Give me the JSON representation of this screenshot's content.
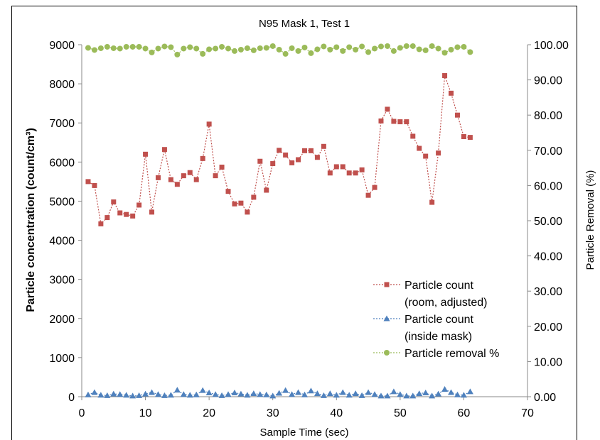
{
  "chart_data": {
    "type": "line",
    "title": "N95 Mask 1, Test 1",
    "xlabel": "Sample Time (sec)",
    "ylabel": "Particle concentration (count/cm³)",
    "ylabel_right": "Particle Removal (%)",
    "xlim": [
      0,
      70
    ],
    "ylim": [
      0,
      9000
    ],
    "ylim_right": [
      0,
      100
    ],
    "x_ticks": [
      "0",
      "10",
      "20",
      "30",
      "40",
      "50",
      "60",
      "70"
    ],
    "y_ticks": [
      "0",
      "1000",
      "2000",
      "3000",
      "4000",
      "5000",
      "6000",
      "7000",
      "8000",
      "9000"
    ],
    "y_ticks_right": [
      "0.00",
      "10.00",
      "20.00",
      "30.00",
      "40.00",
      "50.00",
      "60.00",
      "70.00",
      "80.00",
      "90.00",
      "100.00"
    ],
    "grid": false,
    "legend_position": "bottom-right",
    "series": [
      {
        "name": "Particle count (room, adjusted)",
        "legend_lines": [
          "Particle count",
          "(room, adjusted)"
        ],
        "axis": "left",
        "color": "#c0504d",
        "marker": "square",
        "x": [
          1,
          2,
          3,
          4,
          5,
          6,
          7,
          8,
          9,
          10,
          11,
          12,
          13,
          14,
          15,
          16,
          17,
          18,
          19,
          20,
          21,
          22,
          23,
          24,
          25,
          26,
          27,
          28,
          29,
          30,
          31,
          32,
          33,
          34,
          35,
          36,
          37,
          38,
          39,
          40,
          41,
          42,
          43,
          44,
          45,
          46,
          47,
          48,
          49,
          50,
          51,
          52,
          53,
          54,
          55,
          56,
          57,
          58,
          59,
          60,
          61
        ],
        "values": [
          5500,
          5400,
          4420,
          4580,
          4980,
          4700,
          4660,
          4620,
          4900,
          6200,
          4720,
          5600,
          6320,
          5550,
          5430,
          5650,
          5730,
          5550,
          6090,
          6970,
          5650,
          5870,
          5250,
          4930,
          4950,
          4720,
          5100,
          6020,
          5280,
          5960,
          6300,
          6180,
          5980,
          6060,
          6290,
          6290,
          6120,
          6400,
          5720,
          5880,
          5880,
          5720,
          5720,
          5800,
          5150,
          5350,
          7050,
          7350,
          7040,
          7030,
          7030,
          6660,
          6350,
          6150,
          4970,
          6230,
          8210,
          7760,
          7200,
          6650,
          6630
        ]
      },
      {
        "name": "Particle count (inside mask)",
        "legend_lines": [
          "Particle count",
          "(inside mask)"
        ],
        "axis": "left",
        "color": "#4f81bd",
        "marker": "triangle",
        "x": [
          1,
          2,
          3,
          4,
          5,
          6,
          7,
          8,
          9,
          10,
          11,
          12,
          13,
          14,
          15,
          16,
          17,
          18,
          19,
          20,
          21,
          22,
          23,
          24,
          25,
          26,
          27,
          28,
          29,
          30,
          31,
          32,
          33,
          34,
          35,
          36,
          37,
          38,
          39,
          40,
          41,
          42,
          43,
          44,
          45,
          46,
          47,
          48,
          49,
          50,
          51,
          52,
          53,
          54,
          55,
          56,
          57,
          58,
          59,
          60,
          61
        ],
        "values": [
          50,
          110,
          40,
          30,
          70,
          60,
          40,
          20,
          30,
          70,
          110,
          60,
          30,
          40,
          170,
          60,
          40,
          50,
          160,
          100,
          60,
          30,
          60,
          100,
          70,
          40,
          80,
          60,
          50,
          20,
          90,
          160,
          60,
          110,
          50,
          150,
          80,
          30,
          80,
          40,
          110,
          40,
          80,
          30,
          110,
          60,
          20,
          20,
          130,
          60,
          20,
          20,
          80,
          100,
          20,
          70,
          190,
          110,
          50,
          40,
          130
        ]
      },
      {
        "name": "Particle removal %",
        "legend_lines": [
          "Particle removal %"
        ],
        "axis": "right",
        "color": "#9bbb59",
        "marker": "circle",
        "x": [
          1,
          2,
          3,
          4,
          5,
          6,
          7,
          8,
          9,
          10,
          11,
          12,
          13,
          14,
          15,
          16,
          17,
          18,
          19,
          20,
          21,
          22,
          23,
          24,
          25,
          26,
          27,
          28,
          29,
          30,
          31,
          32,
          33,
          34,
          35,
          36,
          37,
          38,
          39,
          40,
          41,
          42,
          43,
          44,
          45,
          46,
          47,
          48,
          49,
          50,
          51,
          52,
          53,
          54,
          55,
          56,
          57,
          58,
          59,
          60,
          61
        ],
        "values": [
          99.1,
          98.5,
          99.0,
          99.4,
          99.0,
          98.9,
          99.4,
          99.4,
          99.4,
          98.9,
          97.8,
          98.9,
          99.5,
          99.3,
          97.2,
          98.9,
          99.3,
          98.9,
          97.4,
          98.7,
          98.9,
          99.4,
          98.9,
          98.2,
          98.6,
          99.0,
          98.4,
          99.0,
          99.1,
          99.6,
          98.6,
          97.4,
          99.0,
          98.2,
          99.2,
          97.6,
          98.7,
          99.5,
          98.6,
          99.3,
          98.2,
          99.3,
          98.6,
          99.5,
          97.9,
          98.9,
          99.5,
          99.6,
          98.2,
          99.1,
          99.6,
          99.6,
          98.7,
          98.4,
          99.6,
          98.9,
          97.7,
          98.6,
          99.3,
          99.4,
          97.9
        ]
      }
    ]
  }
}
